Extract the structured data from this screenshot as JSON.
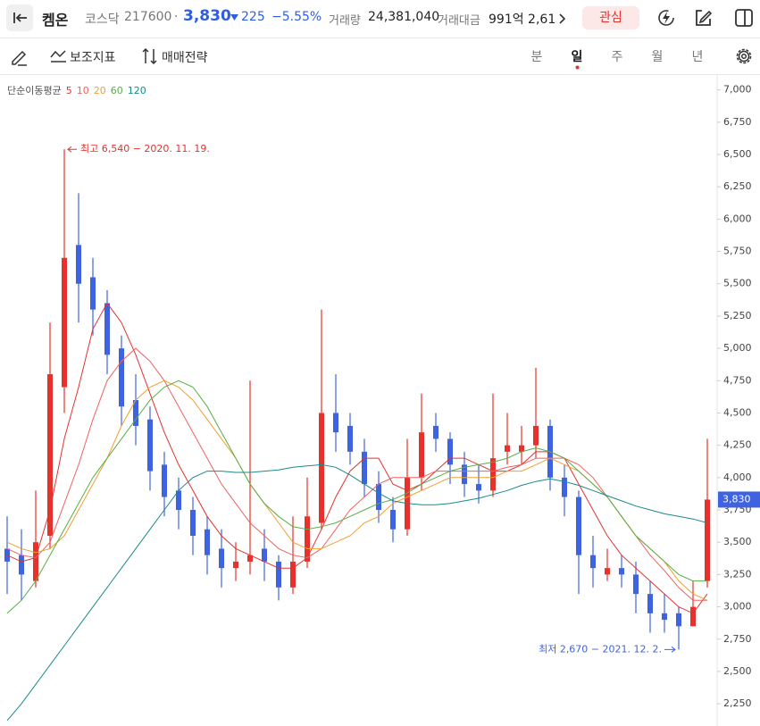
{
  "header": {
    "name": "켐온",
    "market": "코스닥",
    "code": "217600",
    "separator": "·",
    "price": "3,830",
    "change": "225",
    "change_pct": "−5.55%",
    "volume_label": "거래량",
    "volume": "24,381,040",
    "amount_label": "거래대금",
    "amount": "991억 2,61",
    "watch": "관심"
  },
  "toolbar": {
    "indicators": "보조지표",
    "strategy": "매매전략",
    "periods": [
      "분",
      "일",
      "주",
      "월",
      "년"
    ]
  },
  "chart_data": {
    "type": "candlestick",
    "legend_title": "단순이동평균",
    "up_color": "#e5322d",
    "down_color": "#3f63e0",
    "categories": [
      null,
      null,
      null,
      null,
      null,
      null,
      null,
      null,
      null,
      null,
      null,
      null,
      null,
      null,
      null,
      null,
      null,
      null,
      null,
      null,
      null,
      null,
      null,
      null,
      null,
      null,
      null,
      null,
      null,
      null,
      null,
      null,
      null,
      null,
      null,
      null,
      null,
      null,
      null,
      null,
      null,
      null,
      null,
      null,
      null,
      null,
      null,
      null,
      null,
      null
    ],
    "open": [
      3450,
      3400,
      3200,
      3550,
      4700,
      5800,
      5550,
      5350,
      5000,
      4600,
      4450,
      4100,
      3900,
      3750,
      3600,
      3450,
      3300,
      3350,
      3450,
      3350,
      3150,
      3350,
      3650,
      4500,
      4400,
      4200,
      3950,
      3750,
      3600,
      4000,
      4400,
      4300,
      4100,
      3950,
      3900,
      4200,
      4200,
      4250,
      4400,
      4000,
      3850,
      3400,
      3250,
      3300,
      3250,
      3100,
      2950,
      2950,
      2850,
      3200
    ],
    "high": [
      3700,
      3600,
      3900,
      5200,
      6540,
      6200,
      5700,
      5450,
      5100,
      4800,
      4550,
      4200,
      4000,
      3850,
      3700,
      3600,
      3500,
      4750,
      3600,
      3400,
      3700,
      4000,
      5300,
      4800,
      4500,
      4300,
      4050,
      3850,
      4300,
      4650,
      4500,
      4350,
      4200,
      4100,
      4650,
      4500,
      4400,
      4850,
      4450,
      4100,
      3900,
      3550,
      3450,
      3400,
      3350,
      3200,
      3100,
      3000,
      3200,
      4300
    ],
    "low": [
      3100,
      3050,
      3150,
      3450,
      4500,
      5200,
      5100,
      4800,
      4400,
      4250,
      3900,
      3700,
      3600,
      3400,
      3250,
      3150,
      3200,
      3250,
      3200,
      3050,
      3100,
      3300,
      3600,
      4200,
      4100,
      3850,
      3650,
      3500,
      3550,
      3900,
      4200,
      3950,
      3850,
      3800,
      3850,
      4100,
      4100,
      4150,
      3900,
      3700,
      3100,
      3150,
      3200,
      3150,
      2950,
      2800,
      2800,
      2670,
      2850,
      3150
    ],
    "close": [
      3350,
      3250,
      3500,
      4800,
      5700,
      5500,
      5300,
      4950,
      4550,
      4400,
      4050,
      3850,
      3750,
      3550,
      3400,
      3300,
      3350,
      3400,
      3350,
      3150,
      3350,
      3700,
      4500,
      4350,
      4200,
      3950,
      3750,
      3600,
      4000,
      4350,
      4300,
      4100,
      3950,
      3900,
      4150,
      4250,
      4250,
      4400,
      4000,
      3850,
      3400,
      3300,
      3300,
      3250,
      3100,
      2950,
      2900,
      2850,
      3000,
      3830
    ],
    "ma": [
      {
        "name": "5",
        "color": "#e5322d",
        "values": [
          3400,
          3350,
          3380,
          3750,
          4300,
          4700,
          5150,
          5350,
          5200,
          4950,
          4650,
          4350,
          4100,
          3900,
          3700,
          3550,
          3450,
          3400,
          3350,
          3300,
          3300,
          3380,
          3600,
          3850,
          4050,
          4150,
          4150,
          3950,
          3900,
          3950,
          4050,
          4150,
          4150,
          4100,
          4050,
          4050,
          4100,
          4200,
          4200,
          4150,
          3950,
          3750,
          3550,
          3400,
          3300,
          3200,
          3100,
          3000,
          2950,
          3100
        ]
      },
      {
        "name": "10",
        "color": "#f0625f",
        "values": [
          3450,
          3400,
          3380,
          3500,
          3800,
          4100,
          4450,
          4750,
          4900,
          5000,
          4900,
          4750,
          4550,
          4350,
          4150,
          3950,
          3800,
          3650,
          3550,
          3450,
          3400,
          3380,
          3450,
          3600,
          3750,
          3850,
          3950,
          4000,
          4000,
          4000,
          4050,
          4050,
          4050,
          4050,
          4050,
          4080,
          4100,
          4150,
          4150,
          4150,
          4100,
          4000,
          3850,
          3700,
          3550,
          3400,
          3280,
          3150,
          3050,
          3050
        ]
      },
      {
        "name": "20",
        "color": "#f0a030",
        "values": [
          3500,
          3450,
          3420,
          3450,
          3550,
          3750,
          3950,
          4150,
          4400,
          4600,
          4700,
          4750,
          4700,
          4600,
          4450,
          4300,
          4150,
          3950,
          3800,
          3650,
          3500,
          3450,
          3450,
          3500,
          3550,
          3650,
          3700,
          3800,
          3850,
          3900,
          3950,
          4000,
          4000,
          4000,
          4000,
          4050,
          4050,
          4100,
          4150,
          4100,
          4050,
          3950,
          3850,
          3700,
          3550,
          3450,
          3350,
          3200,
          3100,
          3050
        ]
      },
      {
        "name": "60",
        "color": "#5aae4a",
        "values": [
          2950,
          3050,
          3200,
          3400,
          3600,
          3800,
          4000,
          4150,
          4300,
          4450,
          4600,
          4700,
          4750,
          4700,
          4550,
          4350,
          4150,
          3950,
          3800,
          3700,
          3620,
          3600,
          3620,
          3650,
          3700,
          3750,
          3800,
          3830,
          3880,
          3950,
          4000,
          4050,
          4080,
          4100,
          4120,
          4150,
          4200,
          4230,
          4200,
          4150,
          4050,
          3950,
          3850,
          3700,
          3550,
          3450,
          3350,
          3250,
          3200,
          3200
        ]
      },
      {
        "name": "120",
        "color": "#1b8a8a",
        "values": [
          2120,
          2250,
          2400,
          2550,
          2700,
          2850,
          3000,
          3150,
          3300,
          3450,
          3600,
          3750,
          3900,
          4000,
          4050,
          4050,
          4040,
          4040,
          4050,
          4060,
          4080,
          4090,
          4100,
          4080,
          4020,
          3950,
          3880,
          3820,
          3800,
          3790,
          3790,
          3800,
          3820,
          3840,
          3870,
          3900,
          3940,
          3970,
          3990,
          3970,
          3940,
          3900,
          3860,
          3820,
          3780,
          3750,
          3720,
          3700,
          3680,
          3650
        ]
      }
    ],
    "annotations": {
      "high": "최고 6,540 − 2020. 11. 19.",
      "low": "최저 2,670 − 2021. 12. 2."
    },
    "current_price": {
      "value": 3830,
      "label": "3,830"
    },
    "ylim": [
      2085,
      7115
    ],
    "yticks": [
      {
        "value": 2250,
        "label": "2,250"
      },
      {
        "value": 2500,
        "label": "2,500"
      },
      {
        "value": 2750,
        "label": "2,750"
      },
      {
        "value": 3000,
        "label": "3,000"
      },
      {
        "value": 3250,
        "label": "3,250"
      },
      {
        "value": 3500,
        "label": "3,500"
      },
      {
        "value": 3750,
        "label": "3,750"
      },
      {
        "value": 4000,
        "label": "4,000"
      },
      {
        "value": 4250,
        "label": "4,250"
      },
      {
        "value": 4500,
        "label": "4,500"
      },
      {
        "value": 4750,
        "label": "4,750"
      },
      {
        "value": 5000,
        "label": "5,000"
      },
      {
        "value": 5250,
        "label": "5,250"
      },
      {
        "value": 5500,
        "label": "5,500"
      },
      {
        "value": 5750,
        "label": "5,750"
      },
      {
        "value": 6000,
        "label": "6,000"
      },
      {
        "value": 6250,
        "label": "6,250"
      },
      {
        "value": 6500,
        "label": "6,500"
      },
      {
        "value": 6750,
        "label": "6,750"
      },
      {
        "value": 7000,
        "label": "7,000"
      }
    ],
    "grid": false
  }
}
